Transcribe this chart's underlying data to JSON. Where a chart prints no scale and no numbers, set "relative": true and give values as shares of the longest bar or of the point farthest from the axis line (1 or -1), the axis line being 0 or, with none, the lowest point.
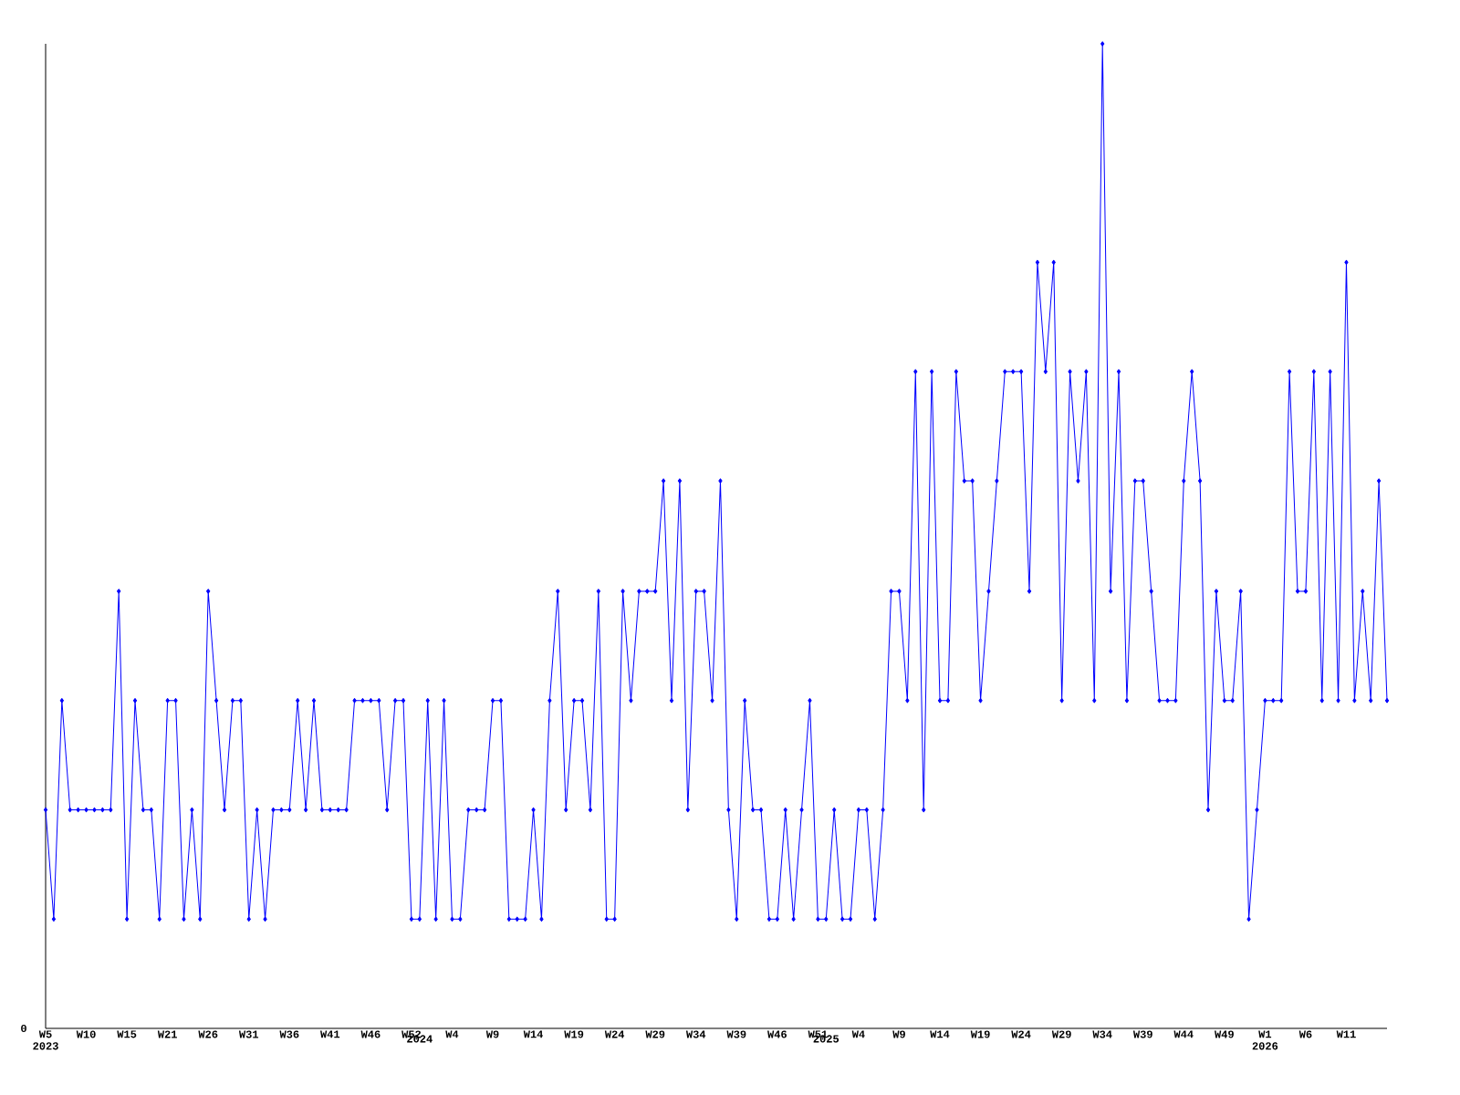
{
  "chart_data": {
    "type": "line",
    "relative": true,
    "color": "#0000ff",
    "marker": "diamond",
    "annotations": [
      "0"
    ],
    "categories": [
      "W5 2023",
      null,
      null,
      null,
      null,
      "W10",
      null,
      null,
      null,
      null,
      "W15",
      null,
      null,
      null,
      null,
      "W21",
      null,
      null,
      null,
      null,
      "W26",
      null,
      null,
      null,
      null,
      "W31",
      null,
      null,
      null,
      null,
      "W36",
      null,
      null,
      null,
      null,
      "W41",
      null,
      null,
      null,
      null,
      "W46",
      null,
      null,
      null,
      null,
      "W52",
      "2024",
      null,
      null,
      null,
      "W4",
      null,
      null,
      null,
      null,
      "W9",
      null,
      null,
      null,
      null,
      "W14",
      null,
      null,
      null,
      null,
      "W19",
      null,
      null,
      null,
      null,
      "W24",
      null,
      null,
      null,
      null,
      "W29",
      null,
      null,
      null,
      null,
      "W34",
      null,
      null,
      null,
      null,
      "W39",
      null,
      null,
      null,
      null,
      "W46",
      null,
      null,
      null,
      null,
      "W51",
      "2025",
      null,
      null,
      null,
      "W4",
      null,
      null,
      null,
      null,
      "W9",
      null,
      null,
      null,
      null,
      "W14",
      null,
      null,
      null,
      null,
      "W19",
      null,
      null,
      null,
      null,
      "W24",
      null,
      null,
      null,
      null,
      "W29",
      null,
      null,
      null,
      null,
      "W34",
      null,
      null,
      null,
      null,
      "W39",
      null,
      null,
      null,
      null,
      "W44",
      null,
      null,
      null,
      null,
      "W49",
      null,
      null,
      null,
      null,
      "W1 2026",
      null,
      null,
      null,
      null,
      "W6",
      null,
      null,
      null,
      null,
      "W11",
      null,
      null,
      null,
      null,
      null
    ],
    "values": [
      0.222,
      0.111,
      0.333,
      0.222,
      0.222,
      0.222,
      0.222,
      0.222,
      0.222,
      0.444,
      0.111,
      0.333,
      0.222,
      0.222,
      0.111,
      0.333,
      0.333,
      0.111,
      0.222,
      0.111,
      0.444,
      0.333,
      0.222,
      0.333,
      0.333,
      0.111,
      0.222,
      0.111,
      0.222,
      0.222,
      0.222,
      0.333,
      0.222,
      0.333,
      0.222,
      0.222,
      0.222,
      0.222,
      0.333,
      0.333,
      0.333,
      0.333,
      0.222,
      0.333,
      0.333,
      0.111,
      0.111,
      0.333,
      0.111,
      0.333,
      0.111,
      0.111,
      0.222,
      0.222,
      0.222,
      0.333,
      0.333,
      0.111,
      0.111,
      0.111,
      0.222,
      0.111,
      0.333,
      0.444,
      0.222,
      0.333,
      0.333,
      0.222,
      0.444,
      0.111,
      0.111,
      0.444,
      0.333,
      0.444,
      0.444,
      0.444,
      0.556,
      0.333,
      0.556,
      0.222,
      0.444,
      0.444,
      0.333,
      0.556,
      0.222,
      0.111,
      0.333,
      0.222,
      0.222,
      0.111,
      0.111,
      0.222,
      0.111,
      0.222,
      0.333,
      0.111,
      0.111,
      0.222,
      0.111,
      0.111,
      0.222,
      0.222,
      0.111,
      0.222,
      0.444,
      0.444,
      0.333,
      0.667,
      0.222,
      0.667,
      0.333,
      0.333,
      0.667,
      0.556,
      0.556,
      0.333,
      0.444,
      0.556,
      0.667,
      0.667,
      0.667,
      0.444,
      0.778,
      0.667,
      0.778,
      0.333,
      0.667,
      0.556,
      0.667,
      0.333,
      1,
      0.444,
      0.667,
      0.333,
      0.556,
      0.556,
      0.444,
      0.333,
      0.333,
      0.333,
      0.556,
      0.667,
      0.556,
      0.222,
      0.444,
      0.333,
      0.333,
      0.444,
      0.111,
      0.222,
      0.333,
      0.333,
      0.333,
      0.667,
      0.444,
      0.444,
      0.667,
      0.333,
      0.667,
      0.333,
      0.778,
      0.333,
      0.444,
      0.333,
      0.556,
      0.333
    ]
  }
}
